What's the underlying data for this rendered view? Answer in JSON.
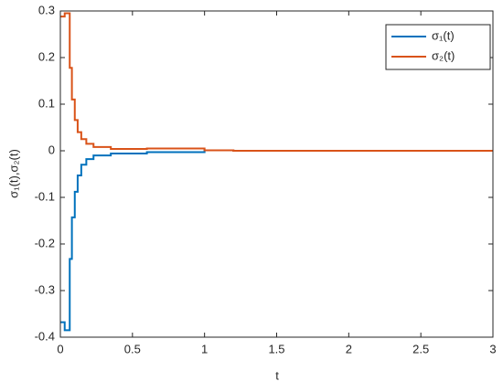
{
  "chart_data": {
    "type": "line",
    "step": "post",
    "x": [
      0,
      0.03,
      0.065,
      0.08,
      0.1,
      0.12,
      0.145,
      0.18,
      0.23,
      0.35,
      0.6,
      1.0,
      1.2,
      3
    ],
    "series": [
      {
        "name": "σ₁(t)",
        "color": "#0072BD",
        "values": [
          -0.368,
          -0.385,
          -0.232,
          -0.143,
          -0.088,
          -0.053,
          -0.03,
          -0.018,
          -0.01,
          -0.006,
          -0.003,
          0.001,
          0,
          0
        ]
      },
      {
        "name": "σ₂(t)",
        "color": "#D95319",
        "values": [
          0.288,
          0.295,
          0.178,
          0.11,
          0.066,
          0.04,
          0.025,
          0.015,
          0.008,
          0.004,
          0.005,
          0.001,
          0,
          0
        ]
      }
    ],
    "x_label": "t",
    "y_label": "σ₁(t),σ₂(t)",
    "xlim": [
      0,
      3
    ],
    "xticks": [
      0,
      0.5,
      1,
      1.5,
      2,
      2.5,
      3
    ],
    "ylim": [
      -0.4,
      0.3
    ],
    "yticks": [
      -0.4,
      -0.3,
      -0.2,
      -0.1,
      0,
      0.1,
      0.2,
      0.3
    ],
    "grid": false,
    "legend": "northeast"
  }
}
